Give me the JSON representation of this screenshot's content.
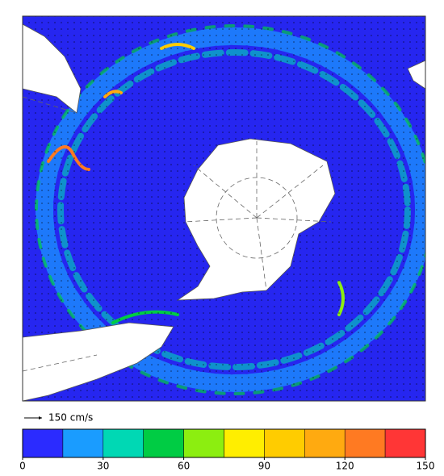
{
  "map": {
    "scale_label": "150 cm/s"
  },
  "colorbar": {
    "bounds": [
      0,
      15,
      30,
      45,
      60,
      75,
      90,
      105,
      120,
      135,
      150
    ],
    "colors": [
      "#2b2bff",
      "#1a9cff",
      "#00d8b4",
      "#00cc44",
      "#8cee10",
      "#ffee00",
      "#ffcc00",
      "#ffaa10",
      "#ff7a22",
      "#ff3636"
    ],
    "ticks": [
      0,
      30,
      60,
      90,
      120,
      150
    ]
  }
}
